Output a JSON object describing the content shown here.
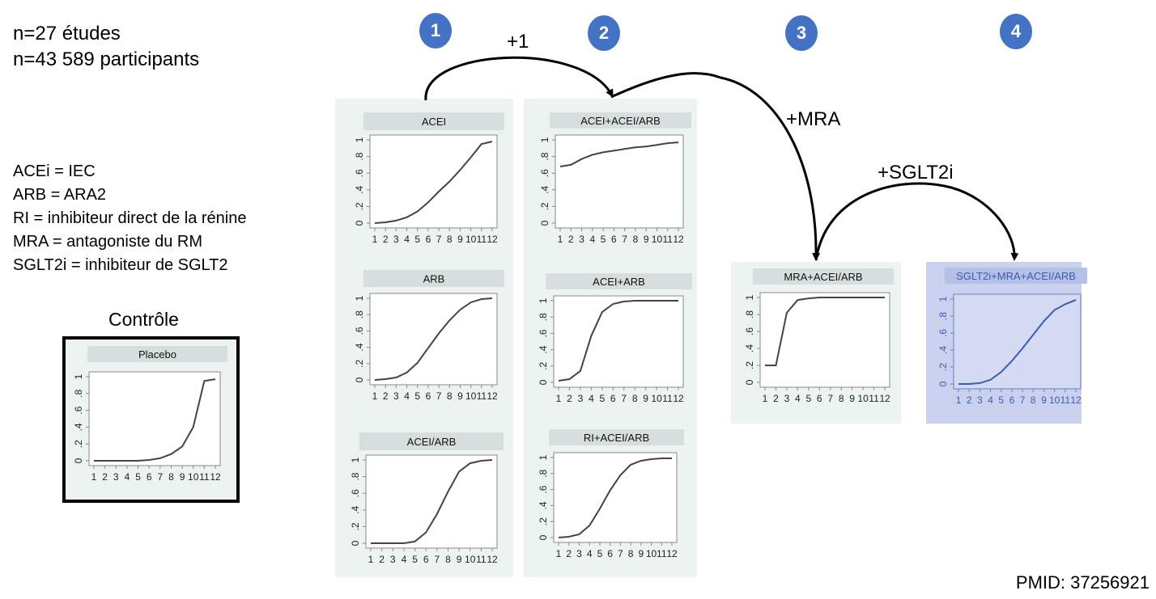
{
  "stats": {
    "line1": "n=27 études",
    "line2": "n=43 589 participants"
  },
  "abbreviations": [
    "ACEi = IEC",
    "ARB = ARA2",
    "RI = inhibiteur direct de la rénine",
    "MRA = antagoniste du RM",
    "SGLT2i = inhibiteur de SGLT2"
  ],
  "control_label": "Contrôle",
  "steps": [
    "1",
    "2",
    "3",
    "4"
  ],
  "arrows": {
    "plus1": "+1",
    "mra": "+MRA",
    "sglt2i": "+SGLT2i"
  },
  "pmid": "PMID: 37256921",
  "colors": {
    "step_badge": "#4472c4",
    "panel_bg": "#edf3f0",
    "highlight_bg": "#c9d1ee",
    "curve": "#444444",
    "highlight_curve": "#3b5bb5"
  },
  "chart_data": [
    {
      "type": "line",
      "title": "Placebo",
      "x": [
        1,
        2,
        3,
        4,
        5,
        6,
        7,
        8,
        9,
        10,
        11,
        12
      ],
      "y": [
        0.0,
        0.0,
        0.0,
        0.0,
        0.0,
        0.01,
        0.03,
        0.08,
        0.17,
        0.4,
        0.95,
        0.97
      ],
      "yticks": [
        "0",
        ".2",
        ".4",
        ".6",
        ".8",
        "1"
      ],
      "ylim": [
        0,
        1
      ],
      "xticks": [
        "1",
        "2",
        "3",
        "4",
        "5",
        "6",
        "7",
        "8",
        "9",
        "10",
        "11",
        "12"
      ]
    },
    {
      "type": "line",
      "title": "ACEI",
      "x": [
        1,
        2,
        3,
        4,
        5,
        6,
        7,
        8,
        9,
        10,
        11,
        12
      ],
      "y": [
        0.0,
        0.01,
        0.03,
        0.07,
        0.14,
        0.25,
        0.38,
        0.5,
        0.64,
        0.79,
        0.95,
        0.98
      ],
      "yticks": [
        "0",
        ".2",
        ".4",
        ".6",
        ".8",
        "1"
      ],
      "ylim": [
        0,
        1
      ],
      "xticks": [
        "1",
        "2",
        "3",
        "4",
        "5",
        "6",
        "7",
        "8",
        "9",
        "10",
        "11",
        "12"
      ]
    },
    {
      "type": "line",
      "title": "ARB",
      "x": [
        1,
        2,
        3,
        4,
        5,
        6,
        7,
        8,
        9,
        10,
        11,
        12
      ],
      "y": [
        0.0,
        0.01,
        0.03,
        0.09,
        0.21,
        0.39,
        0.57,
        0.73,
        0.86,
        0.95,
        0.99,
        1.0
      ],
      "yticks": [
        "0",
        ".2",
        ".4",
        ".6",
        ".8",
        "1"
      ],
      "ylim": [
        0,
        1
      ],
      "xticks": [
        "1",
        "2",
        "3",
        "4",
        "5",
        "6",
        "7",
        "8",
        "9",
        "10",
        "11",
        "12"
      ]
    },
    {
      "type": "line",
      "title": "ACEI/ARB",
      "x": [
        1,
        2,
        3,
        4,
        5,
        6,
        7,
        8,
        9,
        10,
        11,
        12
      ],
      "y": [
        0.0,
        0.0,
        0.0,
        0.0,
        0.02,
        0.13,
        0.35,
        0.62,
        0.86,
        0.96,
        0.99,
        1.0
      ],
      "yticks": [
        "0",
        ".2",
        ".4",
        ".6",
        ".8",
        "1"
      ],
      "ylim": [
        0,
        1
      ],
      "xticks": [
        "1",
        "2",
        "3",
        "4",
        "5",
        "6",
        "7",
        "8",
        "9",
        "10",
        "11",
        "12"
      ]
    },
    {
      "type": "line",
      "title": "ACEI+ACEI/ARB",
      "x": [
        1,
        2,
        3,
        4,
        5,
        6,
        7,
        8,
        9,
        10,
        11,
        12
      ],
      "y": [
        0.68,
        0.7,
        0.77,
        0.82,
        0.85,
        0.87,
        0.89,
        0.91,
        0.92,
        0.94,
        0.96,
        0.97
      ],
      "yticks": [
        "0",
        ".2",
        ".4",
        ".6",
        ".8",
        "1"
      ],
      "ylim": [
        0,
        1
      ],
      "xticks": [
        "1",
        "2",
        "3",
        "4",
        "5",
        "6",
        "7",
        "8",
        "9",
        "10",
        "11",
        "12"
      ]
    },
    {
      "type": "line",
      "title": "ACEI+ARB",
      "x": [
        1,
        2,
        3,
        4,
        5,
        6,
        7,
        8,
        9,
        10,
        11,
        12
      ],
      "y": [
        0.02,
        0.04,
        0.14,
        0.57,
        0.86,
        0.96,
        0.99,
        1.0,
        1.0,
        1.0,
        1.0,
        1.0
      ],
      "yticks": [
        "0",
        ".2",
        ".4",
        ".6",
        ".8",
        "1"
      ],
      "ylim": [
        0,
        1
      ],
      "xticks": [
        "1",
        "2",
        "3",
        "4",
        "5",
        "6",
        "7",
        "8",
        "9",
        "10",
        "11",
        "12"
      ]
    },
    {
      "type": "line",
      "title": "RI+ACEI/ARB",
      "x": [
        1,
        2,
        3,
        4,
        5,
        6,
        7,
        8,
        9,
        10,
        11,
        12
      ],
      "y": [
        0.0,
        0.01,
        0.04,
        0.15,
        0.36,
        0.59,
        0.78,
        0.91,
        0.96,
        0.98,
        0.99,
        0.99
      ],
      "yticks": [
        "0",
        ".2",
        ".4",
        ".6",
        ".8",
        "1"
      ],
      "ylim": [
        0,
        1
      ],
      "xticks": [
        "1",
        "2",
        "3",
        "4",
        "5",
        "6",
        "7",
        "8",
        "9",
        "10",
        "11",
        "12"
      ]
    },
    {
      "type": "line",
      "title": "MRA+ACEI/ARB",
      "x": [
        1,
        2,
        3,
        4,
        5,
        6,
        7,
        8,
        9,
        10,
        11,
        12
      ],
      "y": [
        0.2,
        0.2,
        0.82,
        0.97,
        0.99,
        1.0,
        1.0,
        1.0,
        1.0,
        1.0,
        1.0,
        1.0
      ],
      "yticks": [
        "0",
        ".2",
        ".4",
        ".6",
        ".8",
        "1"
      ],
      "ylim": [
        0,
        1
      ],
      "xticks": [
        "1",
        "2",
        "3",
        "4",
        "5",
        "6",
        "7",
        "8",
        "9",
        "10",
        "11",
        "12"
      ]
    },
    {
      "type": "line",
      "title": "SGLT2i+MRA+ACEI/ARB",
      "x": [
        1,
        2,
        3,
        4,
        5,
        6,
        7,
        8,
        9,
        10,
        11,
        12
      ],
      "y": [
        0.0,
        0.0,
        0.01,
        0.05,
        0.14,
        0.27,
        0.42,
        0.58,
        0.74,
        0.87,
        0.94,
        0.99
      ],
      "yticks": [
        "0",
        ".2",
        ".4",
        ".6",
        ".8",
        "1"
      ],
      "ylim": [
        0,
        1
      ],
      "xticks": [
        "1",
        "2",
        "3",
        "4",
        "5",
        "6",
        "7",
        "8",
        "9",
        "10",
        "11",
        "12"
      ]
    }
  ]
}
